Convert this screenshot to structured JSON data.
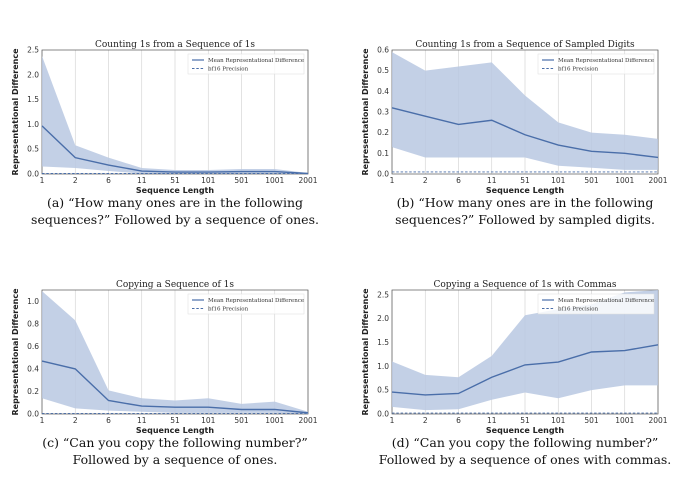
{
  "chart_data": [
    {
      "type": "line",
      "title": "Counting 1s from a Sequence of 1s",
      "xlabel": "Sequence Length",
      "ylabel": "Representational Difference",
      "categories": [
        "1",
        "2",
        "6",
        "11",
        "51",
        "101",
        "501",
        "1001",
        "2001"
      ],
      "ylim": [
        0,
        2.5
      ],
      "yticks": [
        "0.0",
        "0.5",
        "1.0",
        "1.5",
        "2.0",
        "2.5"
      ],
      "series": [
        {
          "name": "Mean Representational Difference",
          "values": [
            0.97,
            0.33,
            0.18,
            0.06,
            0.04,
            0.04,
            0.05,
            0.05,
            0.01
          ],
          "lower": [
            0.15,
            0.12,
            0.06,
            0.01,
            0.01,
            0.01,
            0.01,
            0.01,
            0.0
          ],
          "upper": [
            2.38,
            0.58,
            0.33,
            0.12,
            0.08,
            0.08,
            0.1,
            0.1,
            0.02
          ]
        },
        {
          "name": "bf16 Precision",
          "values": [
            0.01,
            0.01,
            0.01,
            0.01,
            0.01,
            0.01,
            0.01,
            0.01,
            0.01
          ]
        }
      ],
      "colors": {
        "mean": "#4a6ea9",
        "band": "#b9c8e2",
        "precision": "#4a6ea9"
      },
      "grid": true,
      "legend": "top-right"
    },
    {
      "type": "line",
      "title": "Counting 1s from a Sequence of Sampled Digits",
      "xlabel": "Sequence Length",
      "ylabel": "Representational Difference",
      "categories": [
        "1",
        "2",
        "6",
        "11",
        "51",
        "101",
        "501",
        "1001",
        "2001"
      ],
      "ylim": [
        0,
        0.6
      ],
      "yticks": [
        "0.0",
        "0.1",
        "0.2",
        "0.3",
        "0.4",
        "0.5",
        "0.6"
      ],
      "series": [
        {
          "name": "Mean Representational Difference",
          "values": [
            0.32,
            0.28,
            0.24,
            0.26,
            0.19,
            0.14,
            0.11,
            0.1,
            0.08
          ],
          "lower": [
            0.13,
            0.08,
            0.08,
            0.08,
            0.08,
            0.04,
            0.03,
            0.02,
            0.02
          ],
          "upper": [
            0.59,
            0.5,
            0.52,
            0.54,
            0.38,
            0.25,
            0.2,
            0.19,
            0.17
          ]
        },
        {
          "name": "bf16 Precision",
          "values": [
            0.01,
            0.01,
            0.01,
            0.01,
            0.01,
            0.01,
            0.01,
            0.01,
            0.01
          ]
        }
      ],
      "colors": {
        "mean": "#4a6ea9",
        "band": "#b9c8e2",
        "precision": "#4a6ea9"
      },
      "grid": true,
      "legend": "top-right"
    },
    {
      "type": "line",
      "title": "Copying a Sequence of 1s",
      "xlabel": "Sequence Length",
      "ylabel": "Representational Difference",
      "categories": [
        "1",
        "2",
        "6",
        "11",
        "51",
        "101",
        "501",
        "1001",
        "2001"
      ],
      "ylim": [
        0,
        1.1
      ],
      "yticks": [
        "0.0",
        "0.2",
        "0.4",
        "0.6",
        "0.8",
        "1.0"
      ],
      "series": [
        {
          "name": "Mean Representational Difference",
          "values": [
            0.47,
            0.4,
            0.12,
            0.07,
            0.06,
            0.06,
            0.04,
            0.04,
            0.01
          ],
          "lower": [
            0.14,
            0.05,
            0.03,
            0.02,
            0.01,
            0.01,
            0.01,
            0.01,
            0.0
          ],
          "upper": [
            1.09,
            0.83,
            0.21,
            0.14,
            0.12,
            0.14,
            0.09,
            0.11,
            0.02
          ]
        },
        {
          "name": "bf16 Precision",
          "values": [
            0.005,
            0.005,
            0.005,
            0.005,
            0.005,
            0.005,
            0.005,
            0.005,
            0.005
          ]
        }
      ],
      "colors": {
        "mean": "#4a6ea9",
        "band": "#b9c8e2",
        "precision": "#4a6ea9"
      },
      "grid": true,
      "legend": "top-right"
    },
    {
      "type": "line",
      "title": "Copying a Sequence of 1s with Commas",
      "xlabel": "Sequence Length",
      "ylabel": "Representational Difference",
      "categories": [
        "1",
        "2",
        "6",
        "11",
        "51",
        "101",
        "501",
        "1001",
        "2001"
      ],
      "ylim": [
        0,
        2.6
      ],
      "yticks": [
        "0.0",
        "0.5",
        "1.0",
        "1.5",
        "2.0",
        "2.5"
      ],
      "series": [
        {
          "name": "Mean Representational Difference",
          "values": [
            0.46,
            0.4,
            0.43,
            0.77,
            1.03,
            1.09,
            1.3,
            1.33,
            1.45
          ],
          "lower": [
            0.15,
            0.08,
            0.1,
            0.3,
            0.45,
            0.33,
            0.5,
            0.6,
            0.6
          ],
          "upper": [
            1.1,
            0.82,
            0.77,
            1.22,
            2.07,
            2.2,
            2.3,
            2.55,
            2.6
          ]
        },
        {
          "name": "bf16 Precision",
          "values": [
            0.02,
            0.02,
            0.02,
            0.02,
            0.02,
            0.02,
            0.02,
            0.02,
            0.02
          ]
        }
      ],
      "colors": {
        "mean": "#4a6ea9",
        "band": "#b9c8e2",
        "precision": "#4a6ea9"
      },
      "grid": true,
      "legend": "top-right"
    }
  ],
  "captions": [
    {
      "line1": "(a) “How many ones are in the following",
      "line2": "sequences?” Followed by a sequence of ones."
    },
    {
      "line1": "(b) “How many ones are in the following",
      "line2": "sequences?” Followed by sampled digits."
    },
    {
      "line1": "(c) “Can you copy the following number?”",
      "line2": "Followed by a sequence of ones."
    },
    {
      "line1": "(d) “Can you copy the following number?”",
      "line2": "Followed by a sequence of ones with commas."
    }
  ]
}
